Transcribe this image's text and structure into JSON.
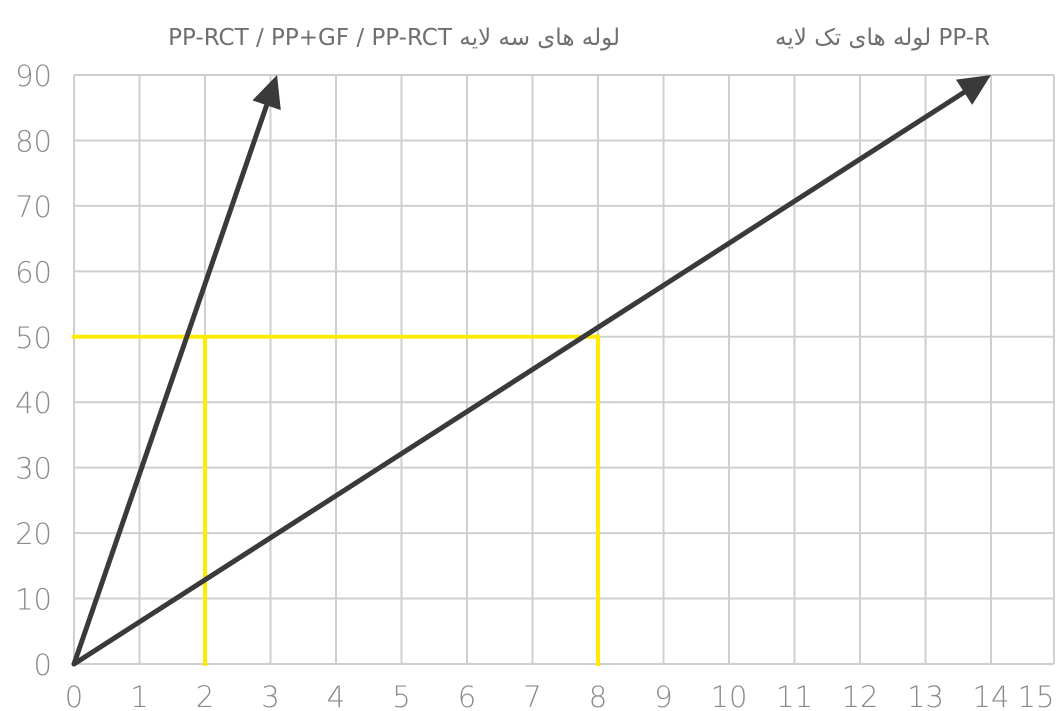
{
  "chart_data": {
    "type": "line",
    "xlim": [
      0,
      14
    ],
    "ylim": [
      0,
      90
    ],
    "x_ticks": [
      0,
      1,
      2,
      3,
      4,
      5,
      6,
      7,
      8,
      9,
      10,
      11,
      12,
      13,
      14,
      15
    ],
    "y_ticks": [
      0,
      10,
      20,
      30,
      40,
      50,
      60,
      70,
      80,
      90
    ],
    "grid": true,
    "legend": "none",
    "series": [
      {
        "name": "PP-RCT / PP+GF / PP-RCT لوله های سه لایه",
        "points": [
          [
            0,
            0
          ],
          [
            3.1,
            90
          ]
        ],
        "color": "#3a3a3a",
        "arrow": true
      },
      {
        "name": "لوله های تک لایه PP-R",
        "points": [
          [
            0,
            0
          ],
          [
            14,
            90
          ]
        ],
        "color": "#3a3a3a",
        "arrow": true
      }
    ],
    "reference_lines": [
      {
        "type": "horizontal",
        "y": 50,
        "x_range": [
          0,
          8
        ],
        "color": "#ffea00"
      },
      {
        "type": "vertical",
        "x": 2,
        "y_range": [
          0,
          50
        ],
        "color": "#ffea00"
      },
      {
        "type": "vertical",
        "x": 8,
        "y_range": [
          0,
          50
        ],
        "color": "#ffea00"
      }
    ]
  }
}
